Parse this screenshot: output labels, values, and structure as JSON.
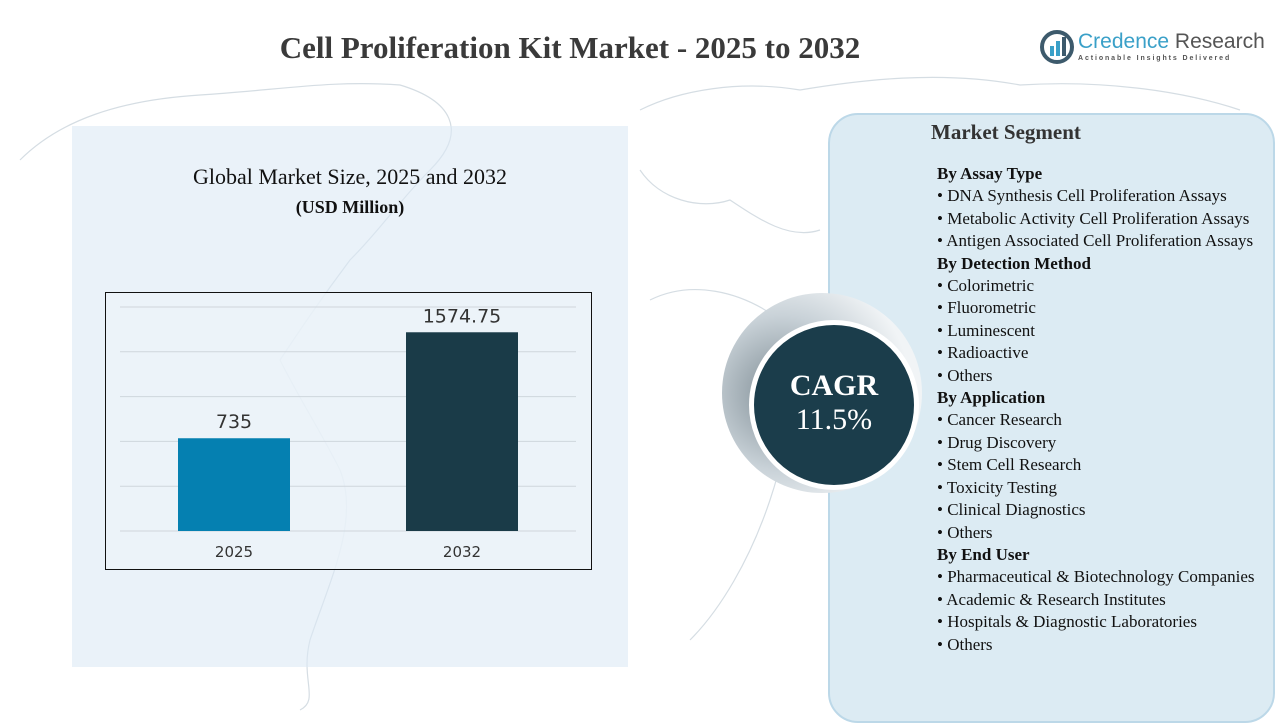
{
  "title": "Cell Proliferation Kit Market - 2025 to 2032",
  "logo": {
    "name_part1": "Credence",
    "name_part2": "Research",
    "tagline": "Actionable Insights Delivered"
  },
  "chart_data": {
    "type": "bar",
    "title": "Global Market Size, 2025 and 2032",
    "subtitle": "(USD Million)",
    "categories": [
      "2025",
      "2032"
    ],
    "values": [
      735,
      1574.75
    ],
    "data_labels": [
      "735",
      "1574.75"
    ],
    "colors": [
      "#0580b1",
      "#1a3b48"
    ],
    "ylim": [
      0,
      1775
    ],
    "grid": true,
    "xlabel": "",
    "ylabel": ""
  },
  "cagr": {
    "label": "CAGR",
    "value": "11.5%"
  },
  "segments": {
    "title": "Market Segment",
    "groups": [
      {
        "heading": "By Assay Type",
        "items": [
          "• DNA Synthesis Cell Proliferation Assays",
          "• Metabolic Activity Cell Proliferation Assays",
          "• Antigen Associated Cell Proliferation Assays"
        ]
      },
      {
        "heading": "By Detection Method",
        "items": [
          "• Colorimetric",
          "• Fluorometric",
          "• Luminescent",
          "• Radioactive",
          "• Others"
        ]
      },
      {
        "heading": "By Application",
        "items": [
          "• Cancer Research",
          "• Drug Discovery",
          "• Stem Cell Research",
          "• Toxicity Testing",
          "• Clinical Diagnostics",
          "• Others"
        ]
      },
      {
        "heading": "By End User",
        "items": [
          "• Pharmaceutical & Biotechnology Companies",
          "• Academic & Research Institutes",
          "• Hospitals & Diagnostic Laboratories",
          "• Others"
        ]
      }
    ]
  }
}
